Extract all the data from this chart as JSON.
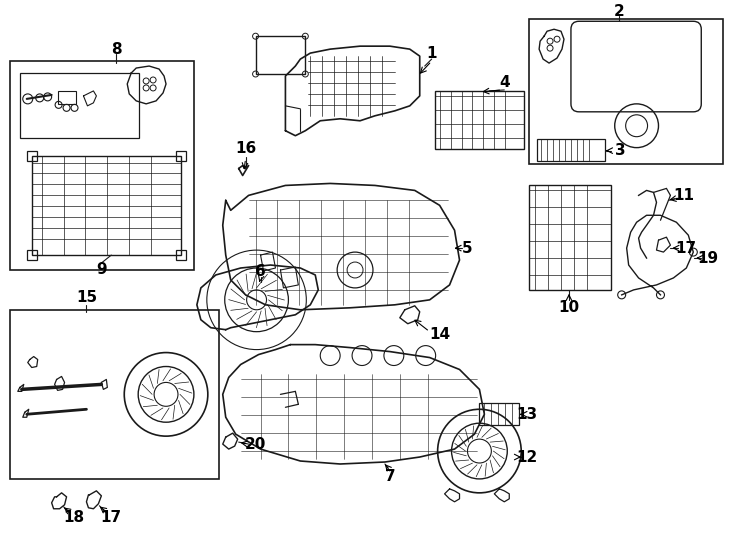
{
  "bg_color": "#ffffff",
  "line_color": "#1a1a1a",
  "fig_width": 7.34,
  "fig_height": 5.4,
  "dpi": 100,
  "font_size": 11
}
